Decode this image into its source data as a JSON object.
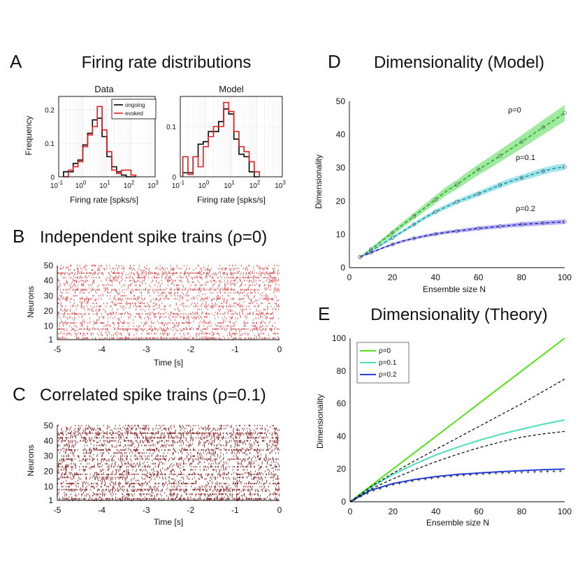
{
  "panels": {
    "A": {
      "label": "A",
      "title": "Firing rate distributions"
    },
    "B": {
      "label": "B",
      "title": "Independent spike trains (ρ=0)"
    },
    "C": {
      "label": "C",
      "title": "Correlated spike trains (ρ=0.1)"
    },
    "D": {
      "label": "D",
      "title": "Dimensionality (Model)"
    },
    "E": {
      "label": "E",
      "title": "Dimensionality (Theory)"
    }
  },
  "chart_data": [
    {
      "id": "A-data",
      "type": "line",
      "style": "step-histogram",
      "subtitle": "Data",
      "xlabel": "Firing rate [spks/s]",
      "ylabel": "Frequency",
      "xscale": "log",
      "xlim": [
        0.1,
        1000
      ],
      "ylim": [
        0,
        0.24
      ],
      "xticks": [
        {
          "v": 0.1,
          "b": "10",
          "e": "-1"
        },
        {
          "v": 1,
          "b": "10",
          "e": "0"
        },
        {
          "v": 10,
          "b": "10",
          "e": "1"
        },
        {
          "v": 100,
          "b": "10",
          "e": "2"
        },
        {
          "v": 1000,
          "b": "10",
          "e": "3"
        }
      ],
      "yticks": [
        {
          "v": 0,
          "t": "0"
        },
        {
          "v": 0.1,
          "t": "0.1"
        },
        {
          "v": 0.2,
          "t": "0.2"
        }
      ],
      "bin_edges_log10": [
        -0.8,
        -0.6,
        -0.4,
        -0.2,
        0.0,
        0.2,
        0.4,
        0.6,
        0.8,
        1.0,
        1.2,
        1.4,
        1.6,
        1.8,
        2.0,
        2.2
      ],
      "legend": {
        "entries": [
          "ongoing",
          "evoked"
        ],
        "position": "top-right"
      },
      "series": [
        {
          "name": "ongoing",
          "color": "#000000",
          "values": [
            0.015,
            0.015,
            0.04,
            0.05,
            0.095,
            0.13,
            0.17,
            0.175,
            0.12,
            0.06,
            0.03,
            0.015,
            0.005,
            0,
            0
          ]
        },
        {
          "name": "evoked",
          "color": "#e41a1c",
          "values": [
            0.0,
            0.02,
            0.03,
            0.045,
            0.09,
            0.125,
            0.15,
            0.21,
            0.14,
            0.075,
            0.02,
            0.01,
            0.02,
            0.02,
            0.005
          ]
        }
      ]
    },
    {
      "id": "A-model",
      "type": "line",
      "style": "step-histogram",
      "subtitle": "Model",
      "xlabel": "Firing rate [spks/s]",
      "ylabel": "",
      "xscale": "log",
      "xlim": [
        0.1,
        1000
      ],
      "ylim": [
        0,
        0.16
      ],
      "xticks": [
        {
          "v": 0.1,
          "b": "10",
          "e": "-1"
        },
        {
          "v": 1,
          "b": "10",
          "e": "0"
        },
        {
          "v": 10,
          "b": "10",
          "e": "1"
        },
        {
          "v": 100,
          "b": "10",
          "e": "2"
        },
        {
          "v": 1000,
          "b": "10",
          "e": "3"
        }
      ],
      "yticks": [
        {
          "v": 0,
          "t": "0"
        },
        {
          "v": 0.1,
          "t": "0.1"
        }
      ],
      "bin_edges_log10": [
        -0.9,
        -0.7,
        -0.5,
        -0.3,
        -0.1,
        0.1,
        0.3,
        0.5,
        0.7,
        0.9,
        1.1,
        1.3,
        1.5,
        1.7,
        1.9,
        2.1
      ],
      "series": [
        {
          "name": "ongoing",
          "color": "#000000",
          "values": [
            0.008,
            0.008,
            0.04,
            0.065,
            0.07,
            0.09,
            0.09,
            0.11,
            0.135,
            0.125,
            0.075,
            0.045,
            0.04,
            0.01,
            0
          ]
        },
        {
          "name": "evoked",
          "color": "#e41a1c",
          "values": [
            0.04,
            0.005,
            0.04,
            0.02,
            0.06,
            0.08,
            0.1,
            0.1,
            0.148,
            0.13,
            0.09,
            0.06,
            0.05,
            0.03,
            0.01
          ]
        }
      ]
    },
    {
      "id": "B",
      "type": "scatter",
      "style": "raster",
      "color": "#e05050",
      "xlabel": "Time [s]",
      "ylabel": "Neurons",
      "xlim": [
        -5,
        0
      ],
      "ylim": [
        1,
        50
      ],
      "neurons": 50,
      "correlation": 0,
      "xticks": [
        {
          "v": -5,
          "t": "-5"
        },
        {
          "v": -4,
          "t": "-4"
        },
        {
          "v": -3,
          "t": "-3"
        },
        {
          "v": -2,
          "t": "-2"
        },
        {
          "v": -1,
          "t": "-1"
        },
        {
          "v": 0,
          "t": "0"
        }
      ],
      "yticks": [
        {
          "v": 1,
          "t": "1"
        },
        {
          "v": 10,
          "t": "10"
        },
        {
          "v": 20,
          "t": "20"
        },
        {
          "v": 30,
          "t": "30"
        },
        {
          "v": 40,
          "t": "40"
        },
        {
          "v": 50,
          "t": "50"
        }
      ],
      "rates": [
        5,
        40,
        3,
        8,
        20,
        2,
        10,
        35,
        5,
        12,
        4,
        25,
        6,
        3,
        10,
        15,
        4,
        30,
        8,
        5,
        12,
        3,
        20,
        7,
        15,
        4,
        9,
        25,
        6,
        11,
        3,
        14,
        5,
        35,
        8,
        4,
        16,
        6,
        10,
        20,
        5,
        28,
        7,
        12,
        40,
        6,
        9,
        18,
        4,
        10
      ]
    },
    {
      "id": "C",
      "type": "scatter",
      "style": "raster",
      "color": "#8b2323",
      "xlabel": "Time [s]",
      "ylabel": "Neurons",
      "xlim": [
        -5,
        0
      ],
      "ylim": [
        1,
        50
      ],
      "neurons": 50,
      "correlation": 0.1,
      "xticks": [
        {
          "v": -5,
          "t": "-5"
        },
        {
          "v": -4,
          "t": "-4"
        },
        {
          "v": -3,
          "t": "-3"
        },
        {
          "v": -2,
          "t": "-2"
        },
        {
          "v": -1,
          "t": "-1"
        },
        {
          "v": 0,
          "t": "0"
        }
      ],
      "yticks": [
        {
          "v": 1,
          "t": "1"
        },
        {
          "v": 10,
          "t": "10"
        },
        {
          "v": 20,
          "t": "20"
        },
        {
          "v": 30,
          "t": "30"
        },
        {
          "v": 40,
          "t": "40"
        },
        {
          "v": 50,
          "t": "50"
        }
      ],
      "rates": [
        8,
        40,
        5,
        10,
        25,
        4,
        12,
        35,
        6,
        15,
        5,
        28,
        7,
        5,
        12,
        18,
        5,
        32,
        9,
        6,
        14,
        4,
        22,
        8,
        16,
        5,
        10,
        28,
        7,
        12,
        4,
        15,
        6,
        38,
        9,
        5,
        18,
        7,
        12,
        22,
        6,
        30,
        8,
        14,
        42,
        7,
        10,
        20,
        5,
        12
      ]
    },
    {
      "id": "D",
      "type": "line",
      "xlabel": "Ensemble size N",
      "ylabel": "Dimensionality",
      "xlim": [
        0,
        100
      ],
      "ylim": [
        0,
        50
      ],
      "xticks": [
        {
          "v": 0,
          "t": "0"
        },
        {
          "v": 20,
          "t": "20"
        },
        {
          "v": 40,
          "t": "40"
        },
        {
          "v": 60,
          "t": "60"
        },
        {
          "v": 80,
          "t": "80"
        },
        {
          "v": 100,
          "t": "100"
        }
      ],
      "yticks": [
        {
          "v": 0,
          "t": "0"
        },
        {
          "v": 10,
          "t": "10"
        },
        {
          "v": 20,
          "t": "20"
        },
        {
          "v": 30,
          "t": "30"
        },
        {
          "v": 40,
          "t": "40"
        },
        {
          "v": 50,
          "t": "50"
        }
      ],
      "x": [
        5,
        10,
        15,
        20,
        25,
        30,
        35,
        40,
        45,
        50,
        55,
        60,
        65,
        70,
        75,
        80,
        85,
        90,
        95,
        100
      ],
      "series": [
        {
          "name": "ρ=0",
          "color": "#1a9e1a",
          "band": "#7ee37e",
          "marker": "#6a6a6a",
          "values": [
            3.2,
            5.5,
            8,
            10.5,
            13,
            15.5,
            18,
            20.5,
            23,
            25,
            27.3,
            29.5,
            31.5,
            33.6,
            35.7,
            37.8,
            40,
            42.2,
            44.3,
            46.5
          ],
          "band_halfwidth": [
            0.2,
            0.4,
            0.6,
            0.8,
            0.9,
            1.0,
            1.1,
            1.2,
            1.3,
            1.4,
            1.5,
            1.6,
            1.7,
            1.8,
            1.9,
            2.0,
            2.1,
            2.2,
            2.3,
            2.4
          ]
        },
        {
          "name": "ρ=0.1",
          "color": "#1a8a9a",
          "band": "#7fdde6",
          "marker": "#6a6a6a",
          "values": [
            3.2,
            5,
            7,
            9,
            11,
            13,
            15,
            16.8,
            18.3,
            19.8,
            21,
            22.2,
            23.5,
            24.8,
            26,
            27,
            28,
            29,
            29.8,
            30.3
          ],
          "band_halfwidth": [
            0.2,
            0.3,
            0.4,
            0.5,
            0.5,
            0.6,
            0.6,
            0.7,
            0.7,
            0.7,
            0.8,
            0.8,
            0.8,
            0.9,
            0.9,
            0.9,
            1.0,
            1.0,
            1.0,
            1.0
          ]
        },
        {
          "name": "ρ=0.2",
          "color": "#1a1a9e",
          "band": "#9f96ff",
          "marker": "#6a6a6a",
          "values": [
            3.2,
            4.5,
            5.8,
            7,
            8,
            8.8,
            9.5,
            10.1,
            10.6,
            11,
            11.4,
            11.8,
            12.1,
            12.4,
            12.7,
            13,
            13.2,
            13.4,
            13.6,
            13.8
          ],
          "band_halfwidth": [
            0.2,
            0.3,
            0.3,
            0.4,
            0.4,
            0.4,
            0.5,
            0.5,
            0.5,
            0.5,
            0.6,
            0.6,
            0.6,
            0.6,
            0.6,
            0.7,
            0.7,
            0.7,
            0.7,
            0.7
          ]
        }
      ]
    },
    {
      "id": "E",
      "type": "line",
      "xlabel": "Ensemble size N",
      "ylabel": "Dimensionality",
      "xlim": [
        0,
        100
      ],
      "ylim": [
        0,
        100
      ],
      "xticks": [
        {
          "v": 0,
          "t": "0"
        },
        {
          "v": 20,
          "t": "20"
        },
        {
          "v": 40,
          "t": "40"
        },
        {
          "v": 60,
          "t": "60"
        },
        {
          "v": 80,
          "t": "80"
        },
        {
          "v": 100,
          "t": "100"
        }
      ],
      "yticks": [
        {
          "v": 0,
          "t": "0"
        },
        {
          "v": 20,
          "t": "20"
        },
        {
          "v": 40,
          "t": "40"
        },
        {
          "v": 60,
          "t": "60"
        },
        {
          "v": 80,
          "t": "80"
        },
        {
          "v": 100,
          "t": "100"
        }
      ],
      "legend": {
        "entries": [
          "ρ=0",
          "ρ=0.1",
          "ρ=0.2"
        ],
        "position": "top-left"
      },
      "x": [
        0,
        10,
        20,
        30,
        40,
        50,
        60,
        70,
        80,
        90,
        100
      ],
      "series": [
        {
          "name": "ρ=0",
          "color": "#55e01e",
          "values": [
            0,
            10,
            20,
            30,
            40,
            50,
            60,
            70,
            80,
            90,
            100
          ]
        },
        {
          "name": "ρ=0.1",
          "color": "#4de0b8",
          "values": [
            0,
            9,
            16.7,
            23,
            28.6,
            33.3,
            37.5,
            41.2,
            44.4,
            47.4,
            50
          ]
        },
        {
          "name": "ρ=0.2",
          "color": "#2440e0",
          "values": [
            0,
            7.2,
            11.1,
            13.6,
            15.4,
            16.7,
            17.6,
            18.4,
            19.0,
            19.6,
            20
          ]
        }
      ],
      "dashed_series": [
        {
          "color": "#000000",
          "values": [
            0,
            9.4,
            17.5,
            25,
            32,
            39,
            46,
            53,
            60,
            67.5,
            75
          ]
        },
        {
          "color": "#000000",
          "values": [
            0,
            8.0,
            14.0,
            19.5,
            24.5,
            29,
            33,
            36.5,
            39.5,
            41.5,
            43
          ]
        }
      ],
      "cross_markers": {
        "color": "#222222",
        "values": [
          0,
          6.5,
          10.5,
          13.0,
          14.8,
          16.0,
          16.9,
          17.6,
          18.1,
          18.5,
          18.8
        ]
      }
    }
  ]
}
